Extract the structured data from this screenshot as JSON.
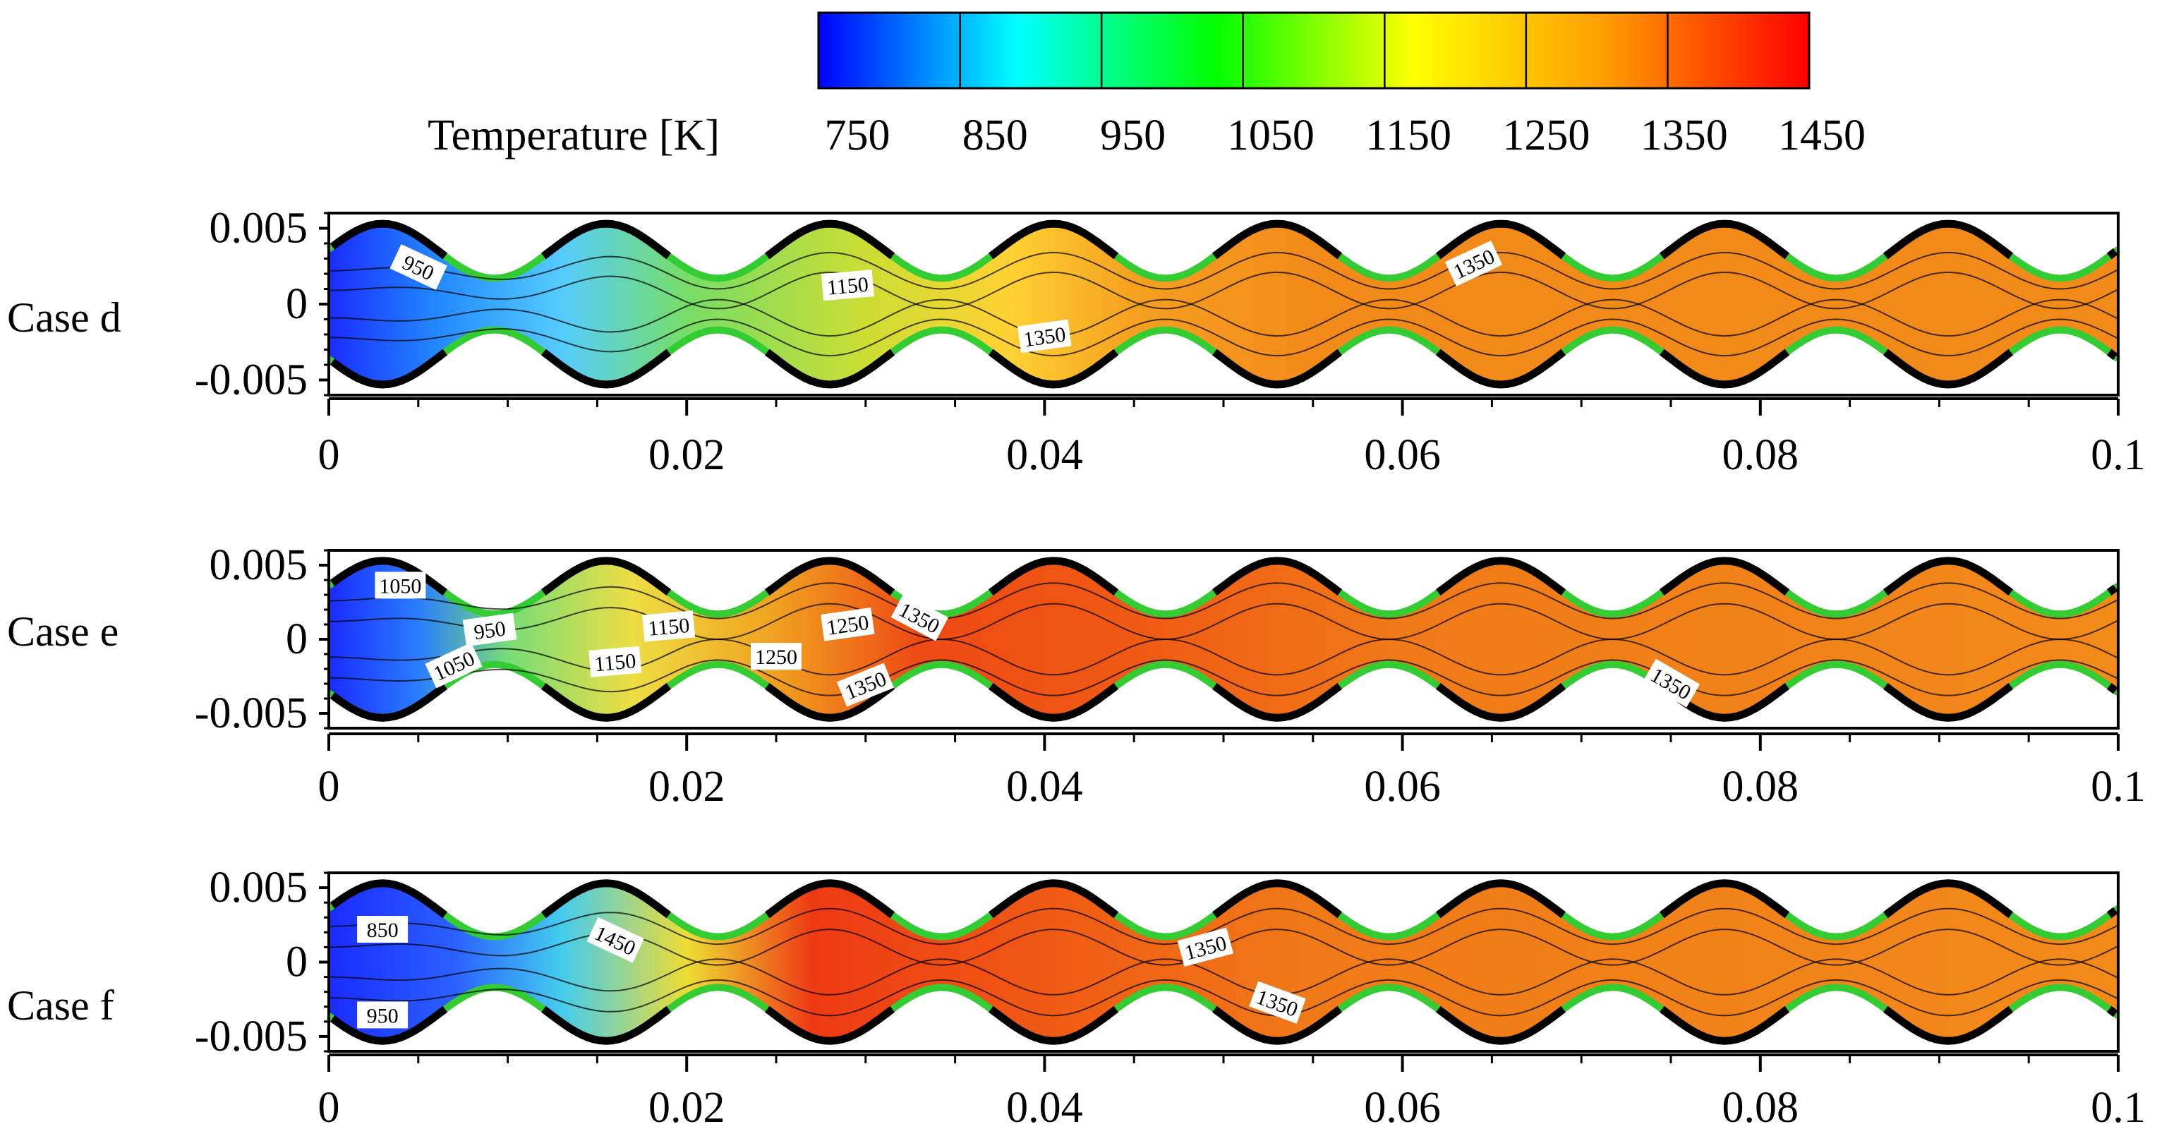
{
  "chart_data": [
    {
      "type": "heatmap",
      "title": "Case d",
      "xlabel": "",
      "ylabel": "",
      "xlim": [
        0,
        0.1
      ],
      "ylim": [
        -0.006,
        0.006
      ],
      "x_ticks": [
        "0",
        "0.02",
        "0.04",
        "0.06",
        "0.08",
        "0.1"
      ],
      "y_ticks": [
        "0.005",
        "0",
        "-0.005"
      ],
      "contour_labels": [
        "950",
        "1150",
        "1350",
        "1350"
      ]
    },
    {
      "type": "heatmap",
      "title": "Case e",
      "xlabel": "",
      "ylabel": "",
      "xlim": [
        0,
        0.1
      ],
      "ylim": [
        -0.006,
        0.006
      ],
      "x_ticks": [
        "0",
        "0.02",
        "0.04",
        "0.06",
        "0.08",
        "0.1"
      ],
      "y_ticks": [
        "0.005",
        "0",
        "-0.005"
      ],
      "contour_labels": [
        "1050",
        "950",
        "1050",
        "1150",
        "1150",
        "1250",
        "1250",
        "1350",
        "1350",
        "1350"
      ]
    },
    {
      "type": "heatmap",
      "title": "Case f",
      "xlabel": "",
      "ylabel": "",
      "xlim": [
        0,
        0.1
      ],
      "ylim": [
        -0.006,
        0.006
      ],
      "x_ticks": [
        "0",
        "0.02",
        "0.04",
        "0.06",
        "0.08",
        "0.1"
      ],
      "y_ticks": [
        "0.005",
        "0",
        "-0.005"
      ],
      "contour_labels": [
        "850",
        "950",
        "1450",
        "1350",
        "1350"
      ]
    }
  ],
  "colorbar": {
    "label": "Temperature [K]",
    "ticks": [
      "750",
      "850",
      "950",
      "1050",
      "1150",
      "1250",
      "1350",
      "1450"
    ],
    "colors": [
      "#0000ff",
      "#00ffff",
      "#00ff00",
      "#ffff00",
      "#ff9900",
      "#ff0000"
    ]
  },
  "colors": {
    "wall_green": "#33cc33",
    "wall_black": "#000000",
    "contour_line": "#000000",
    "hot": "#f08a1a"
  }
}
